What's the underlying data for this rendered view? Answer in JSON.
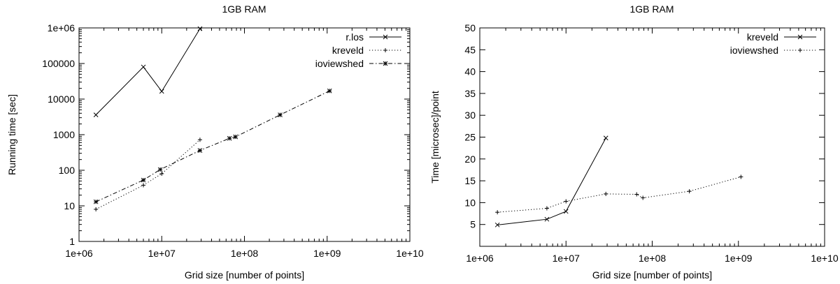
{
  "chart_data": [
    {
      "type": "line",
      "title": "1GB RAM",
      "xlabel": "Grid size [number of points]",
      "ylabel": "Running time [sec]",
      "xscale": "log",
      "yscale": "log",
      "xlim": [
        1000000,
        10000000000
      ],
      "ylim": [
        1,
        1000000
      ],
      "xticks": [
        "1e+06",
        "1e+07",
        "1e+08",
        "1e+09",
        "1e+10"
      ],
      "yticks": [
        "1",
        "10",
        "100",
        "1000",
        "10000",
        "100000",
        "1e+06"
      ],
      "legend": "top-right",
      "grid": false,
      "series": [
        {
          "name": "r.los",
          "style": "solid",
          "marker": "x",
          "points": [
            [
              1600000,
              3600
            ],
            [
              6000000,
              80000
            ],
            [
              10000000,
              16500
            ],
            [
              29000000,
              950000
            ]
          ]
        },
        {
          "name": "kreveld",
          "style": "dotted",
          "marker": "+",
          "points": [
            [
              1600000,
              8
            ],
            [
              6000000,
              38
            ],
            [
              10000000,
              80
            ],
            [
              29000000,
              720
            ]
          ]
        },
        {
          "name": "ioviewshed",
          "style": "dashdot",
          "marker": "*",
          "points": [
            [
              1600000,
              13
            ],
            [
              6000000,
              53
            ],
            [
              9600000,
              105
            ],
            [
              29000000,
              360
            ],
            [
              66000000,
              790
            ],
            [
              78000000,
              870
            ],
            [
              270000000,
              3600
            ],
            [
              1070000000,
              17000
            ]
          ]
        }
      ]
    },
    {
      "type": "line",
      "title": "1GB RAM",
      "xlabel": "Grid size [number of points]",
      "ylabel": "Time [microsec]/point",
      "xscale": "log",
      "yscale": "linear",
      "xlim": [
        1000000,
        10000000000
      ],
      "ylim": [
        0,
        50
      ],
      "xticks": [
        "1e+06",
        "1e+07",
        "1e+08",
        "1e+09",
        "1e+10"
      ],
      "yticks": [
        "5",
        "10",
        "15",
        "20",
        "25",
        "30",
        "35",
        "40",
        "45",
        "50"
      ],
      "legend": "top-right",
      "grid": false,
      "series": [
        {
          "name": "kreveld",
          "style": "solid",
          "marker": "x",
          "points": [
            [
              1600000,
              4.9
            ],
            [
              6000000,
              6.2
            ],
            [
              10000000,
              8.0
            ],
            [
              29000000,
              24.8
            ]
          ]
        },
        {
          "name": "ioviewshed",
          "style": "dotted",
          "marker": "+",
          "points": [
            [
              1600000,
              7.8
            ],
            [
              6000000,
              8.7
            ],
            [
              10000000,
              10.3
            ],
            [
              29000000,
              12.0
            ],
            [
              66000000,
              11.9
            ],
            [
              78000000,
              11.1
            ],
            [
              270000000,
              12.6
            ],
            [
              1070000000,
              15.9
            ]
          ]
        }
      ]
    }
  ]
}
